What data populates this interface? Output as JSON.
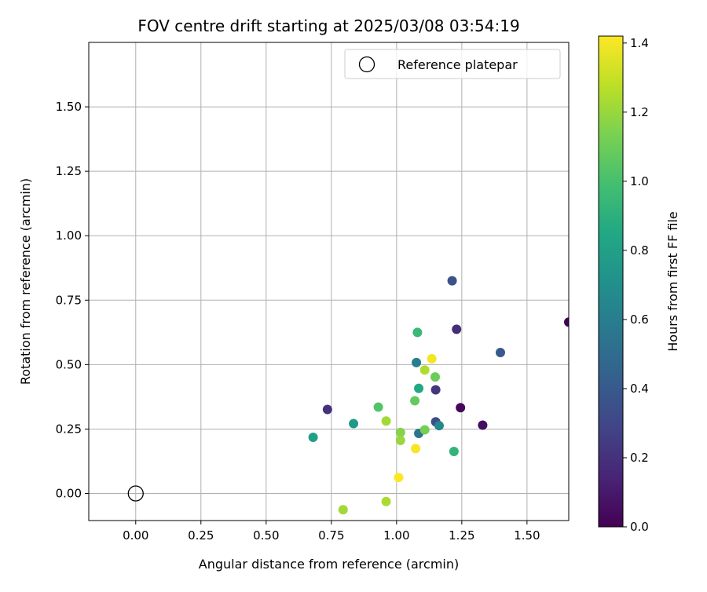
{
  "chart_data": {
    "type": "scatter",
    "title": "FOV centre drift starting at 2025/03/08 03:54:19",
    "xlabel": "Angular distance from reference (arcmin)",
    "ylabel": "Rotation from reference (arcmin)",
    "xlim": [
      -0.18,
      1.66
    ],
    "ylim": [
      -0.105,
      1.75
    ],
    "xticks": [
      0.0,
      0.25,
      0.5,
      0.75,
      1.0,
      1.25,
      1.5
    ],
    "yticks": [
      0.0,
      0.25,
      0.5,
      0.75,
      1.0,
      1.25,
      1.5
    ],
    "xtick_labels": [
      "0.00",
      "0.25",
      "0.50",
      "0.75",
      "1.00",
      "1.25",
      "1.50"
    ],
    "ytick_labels": [
      "0.00",
      "0.25",
      "0.50",
      "0.75",
      "1.00",
      "1.25",
      "1.50"
    ],
    "grid": true,
    "legend": {
      "placement": "top-right",
      "entries": [
        "Reference platepar"
      ]
    },
    "reference_point": {
      "x": 0.0,
      "y": 0.0,
      "marker": "open-circle",
      "label": "Reference platepar"
    },
    "colorbar": {
      "label": "Hours from first FF file",
      "range": [
        0.0,
        1.42
      ],
      "ticks": [
        0.0,
        0.2,
        0.4,
        0.6,
        0.8,
        1.0,
        1.2,
        1.4
      ],
      "tick_labels": [
        "0.0",
        "0.2",
        "0.4",
        "0.6",
        "0.8",
        "1.0",
        "1.2",
        "1.4"
      ],
      "colormap": "viridis"
    },
    "points": [
      {
        "x": 1.66,
        "y": 0.665,
        "c": 0.0
      },
      {
        "x": 1.245,
        "y": 0.333,
        "c": 0.03
      },
      {
        "x": 1.33,
        "y": 0.265,
        "c": 0.05
      },
      {
        "x": 1.23,
        "y": 0.637,
        "c": 0.18
      },
      {
        "x": 0.735,
        "y": 0.326,
        "c": 0.2
      },
      {
        "x": 1.15,
        "y": 0.402,
        "c": 0.22
      },
      {
        "x": 1.15,
        "y": 0.278,
        "c": 0.33
      },
      {
        "x": 1.213,
        "y": 0.825,
        "c": 0.36
      },
      {
        "x": 1.398,
        "y": 0.547,
        "c": 0.4
      },
      {
        "x": 1.085,
        "y": 0.233,
        "c": 0.55
      },
      {
        "x": 1.076,
        "y": 0.508,
        "c": 0.6
      },
      {
        "x": 1.163,
        "y": 0.263,
        "c": 0.65
      },
      {
        "x": 0.835,
        "y": 0.271,
        "c": 0.76
      },
      {
        "x": 0.68,
        "y": 0.218,
        "c": 0.8
      },
      {
        "x": 1.085,
        "y": 0.408,
        "c": 0.85
      },
      {
        "x": 1.22,
        "y": 0.163,
        "c": 0.92
      },
      {
        "x": 1.08,
        "y": 0.625,
        "c": 0.95
      },
      {
        "x": 0.93,
        "y": 0.335,
        "c": 1.03
      },
      {
        "x": 1.07,
        "y": 0.36,
        "c": 1.08
      },
      {
        "x": 1.148,
        "y": 0.452,
        "c": 1.1
      },
      {
        "x": 1.108,
        "y": 0.247,
        "c": 1.12
      },
      {
        "x": 1.015,
        "y": 0.237,
        "c": 1.16
      },
      {
        "x": 1.015,
        "y": 0.206,
        "c": 1.2
      },
      {
        "x": 0.96,
        "y": 0.281,
        "c": 1.22
      },
      {
        "x": 1.108,
        "y": 0.479,
        "c": 1.25
      },
      {
        "x": 0.96,
        "y": -0.031,
        "c": 1.24
      },
      {
        "x": 0.795,
        "y": -0.063,
        "c": 1.22
      },
      {
        "x": 1.135,
        "y": 0.523,
        "c": 1.4
      },
      {
        "x": 1.073,
        "y": 0.174,
        "c": 1.41
      },
      {
        "x": 1.008,
        "y": 0.062,
        "c": 1.42
      }
    ]
  }
}
